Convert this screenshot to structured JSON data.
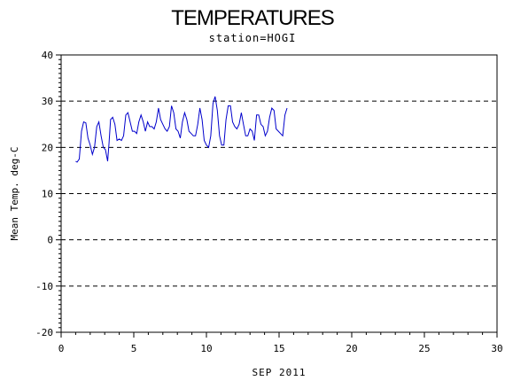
{
  "title": "TEMPERATURES",
  "subtitle": "station=HOGI",
  "chart_data": {
    "type": "line",
    "title": "TEMPERATURES",
    "subtitle": "station=HOGI",
    "xlabel": "SEP 2011",
    "ylabel": "Mean Temp. deg-C",
    "xlim": [
      0,
      30
    ],
    "ylim": [
      -20,
      40
    ],
    "x_ticks": [
      0,
      5,
      10,
      15,
      20,
      25,
      30
    ],
    "y_ticks": [
      -20,
      -10,
      0,
      10,
      20,
      30,
      40
    ],
    "grid": "horizontal dashed",
    "line_color": "#0000cc",
    "series": [
      {
        "x": [
          1.0,
          1.1,
          1.25,
          1.4,
          1.55,
          1.7,
          1.85,
          2.0,
          2.15,
          2.3,
          2.45,
          2.6,
          2.75,
          2.9,
          3.05,
          3.2,
          3.3,
          3.4,
          3.55,
          3.7,
          3.85,
          4.0,
          4.15,
          4.3,
          4.45,
          4.6,
          4.75,
          4.9,
          5.05,
          5.2,
          5.35,
          5.5,
          5.65,
          5.8,
          5.95,
          6.1,
          6.25,
          6.4,
          6.55,
          6.7,
          6.85,
          7.0,
          7.15,
          7.3,
          7.45,
          7.6,
          7.75,
          7.9,
          8.05,
          8.2,
          8.35,
          8.5,
          8.65,
          8.8,
          8.95,
          9.1,
          9.25,
          9.4,
          9.55,
          9.7,
          9.85,
          10.0,
          10.15,
          10.3,
          10.45,
          10.6,
          10.75,
          10.9,
          11.05,
          11.2,
          11.35,
          11.5,
          11.65,
          11.8,
          11.95,
          12.1,
          12.25,
          12.4,
          12.55,
          12.7,
          12.85,
          13.0,
          13.15,
          13.3,
          13.45,
          13.6,
          13.75,
          13.9,
          14.05,
          14.2,
          14.35,
          14.5,
          14.65,
          14.8,
          14.95,
          15.1,
          15.25,
          15.4,
          15.55
        ],
        "y": [
          17.0,
          16.8,
          17.5,
          23.5,
          25.5,
          25.3,
          22.0,
          20.5,
          18.5,
          20.0,
          24.5,
          25.5,
          22.5,
          20.0,
          19.5,
          17.0,
          21.0,
          26.0,
          26.5,
          25.0,
          21.5,
          21.8,
          21.5,
          22.5,
          27.0,
          27.5,
          25.5,
          23.5,
          23.5,
          23.0,
          25.5,
          27.0,
          25.5,
          23.5,
          25.5,
          24.5,
          24.5,
          24.0,
          25.5,
          28.5,
          26.0,
          25.0,
          24.0,
          23.5,
          24.5,
          29.0,
          27.5,
          24.0,
          23.5,
          22.0,
          25.5,
          27.5,
          26.0,
          23.5,
          23.0,
          22.5,
          22.5,
          25.0,
          28.5,
          26.0,
          21.5,
          20.5,
          20.0,
          22.5,
          29.5,
          31.0,
          28.0,
          22.5,
          20.5,
          20.5,
          26.0,
          29.0,
          29.0,
          25.5,
          24.5,
          24.0,
          25.0,
          27.5,
          25.0,
          22.5,
          22.5,
          24.0,
          23.5,
          21.5,
          27.0,
          27.0,
          25.0,
          24.5,
          22.5,
          23.5,
          26.5,
          28.5,
          28.0,
          24.0,
          23.5,
          23.0,
          22.5,
          27.0,
          28.5
        ]
      }
    ]
  }
}
